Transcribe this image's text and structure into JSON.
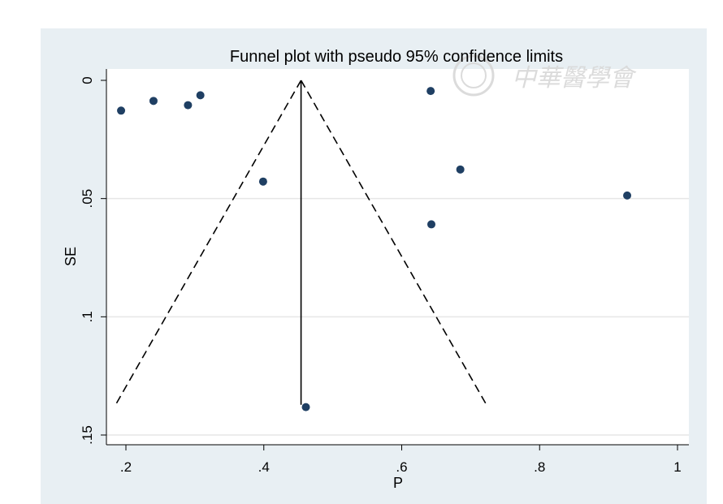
{
  "chart_data": {
    "type": "scatter",
    "title": "Funnel plot with pseudo 95% confidence limits",
    "xlabel": "P",
    "ylabel": "SE",
    "xlim": [
      0.18,
      1.015
    ],
    "ylim": [
      0,
      0.153
    ],
    "y_reversed": true,
    "x_ticks": [
      0.2,
      0.4,
      0.6,
      0.8,
      1
    ],
    "x_tick_labels": [
      ".2",
      ".4",
      ".6",
      ".8",
      "1"
    ],
    "y_ticks": [
      0,
      0.05,
      0.1,
      0.15
    ],
    "y_tick_labels": [
      "0",
      ".05",
      ".1",
      ".15"
    ],
    "grid": true,
    "points": [
      {
        "x": 0.193,
        "y": 0.0128
      },
      {
        "x": 0.24,
        "y": 0.0087
      },
      {
        "x": 0.29,
        "y": 0.0105
      },
      {
        "x": 0.308,
        "y": 0.0063
      },
      {
        "x": 0.399,
        "y": 0.0428
      },
      {
        "x": 0.461,
        "y": 0.1382
      },
      {
        "x": 0.642,
        "y": 0.0045
      },
      {
        "x": 0.643,
        "y": 0.0609
      },
      {
        "x": 0.685,
        "y": 0.0377
      },
      {
        "x": 0.927,
        "y": 0.0487
      }
    ],
    "pooled_estimate": 0.454,
    "funnel_max_se": 0.1372,
    "ci_z": 1.96,
    "point_color": "#1f3f63",
    "background_color": "#e8eff3",
    "plot_background": "#ffffff"
  },
  "watermark": {
    "text": "中華醫學會"
  }
}
